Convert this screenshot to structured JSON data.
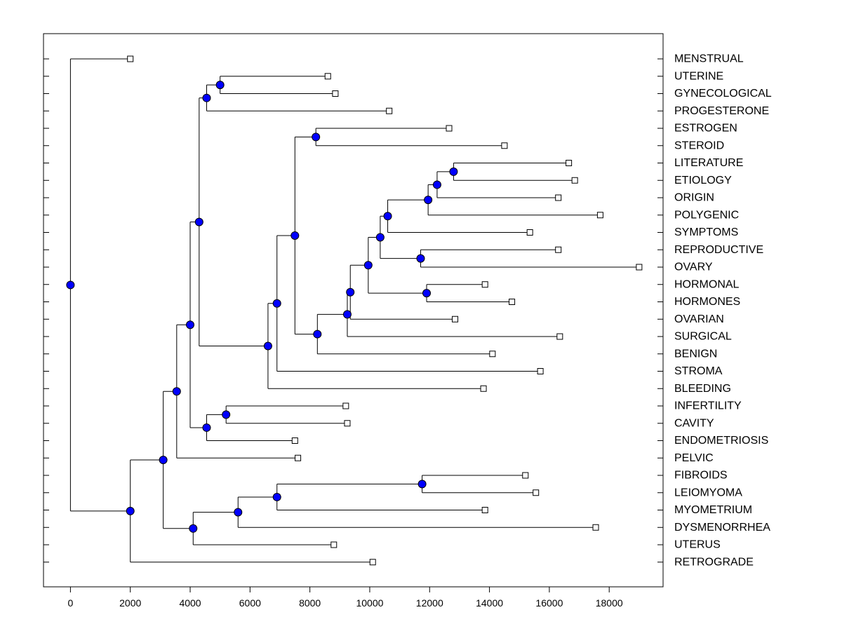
{
  "chart_data": {
    "type": "dendrogram",
    "title": "",
    "xlabel": "",
    "ylabel": "",
    "xlim": [
      -900,
      19800
    ],
    "x_ticks": [
      0,
      2000,
      4000,
      6000,
      8000,
      10000,
      12000,
      14000,
      16000,
      18000
    ],
    "x_tick_labels": [
      "0",
      "2000",
      "4000",
      "6000",
      "8000",
      "10000",
      "12000",
      "14000",
      "16000",
      "18000"
    ],
    "grid": false,
    "leaves": [
      {
        "label": "MENSTRUAL",
        "value": 2000
      },
      {
        "label": "UTERINE",
        "value": 8600
      },
      {
        "label": "GYNECOLOGICAL",
        "value": 8850
      },
      {
        "label": "PROGESTERONE",
        "value": 10650
      },
      {
        "label": "ESTROGEN",
        "value": 12650
      },
      {
        "label": "STEROID",
        "value": 14500
      },
      {
        "label": "LITERATURE",
        "value": 16650
      },
      {
        "label": "ETIOLOGY",
        "value": 16850
      },
      {
        "label": "ORIGIN",
        "value": 16300
      },
      {
        "label": "POLYGENIC",
        "value": 17700
      },
      {
        "label": "SYMPTOMS",
        "value": 15350
      },
      {
        "label": "REPRODUCTIVE",
        "value": 16300
      },
      {
        "label": "OVARY",
        "value": 19000
      },
      {
        "label": "HORMONAL",
        "value": 13850
      },
      {
        "label": "HORMONES",
        "value": 14750
      },
      {
        "label": "OVARIAN",
        "value": 12850
      },
      {
        "label": "SURGICAL",
        "value": 16350
      },
      {
        "label": "BENIGN",
        "value": 14100
      },
      {
        "label": "STROMA",
        "value": 15700
      },
      {
        "label": "BLEEDING",
        "value": 13800
      },
      {
        "label": "INFERTILITY",
        "value": 9200
      },
      {
        "label": "CAVITY",
        "value": 9250
      },
      {
        "label": "ENDOMETRIOSIS",
        "value": 7500
      },
      {
        "label": "PELVIC",
        "value": 7600
      },
      {
        "label": "FIBROIDS",
        "value": 15200
      },
      {
        "label": "LEIOMYOMA",
        "value": 15550
      },
      {
        "label": "MYOMETRIUM",
        "value": 13850
      },
      {
        "label": "DYSMENORRHEA",
        "value": 17550
      },
      {
        "label": "UTERUS",
        "value": 8800
      },
      {
        "label": "RETROGRADE",
        "value": 10100
      }
    ],
    "merges": [
      {
        "id": "m1",
        "value": 5000,
        "children": [
          "UTERINE",
          "GYNECOLOGICAL"
        ]
      },
      {
        "id": "m2",
        "value": 4550,
        "children": [
          "m1",
          "PROGESTERONE"
        ]
      },
      {
        "id": "m3",
        "value": 8200,
        "children": [
          "ESTROGEN",
          "STEROID"
        ]
      },
      {
        "id": "m4",
        "value": 12800,
        "children": [
          "LITERATURE",
          "ETIOLOGY"
        ]
      },
      {
        "id": "m5",
        "value": 12250,
        "children": [
          "m4",
          "ORIGIN"
        ]
      },
      {
        "id": "m6",
        "value": 11950,
        "children": [
          "m5",
          "POLYGENIC"
        ]
      },
      {
        "id": "m7",
        "value": 10600,
        "children": [
          "m6",
          "SYMPTOMS"
        ]
      },
      {
        "id": "m8",
        "value": 11700,
        "children": [
          "REPRODUCTIVE",
          "OVARY"
        ]
      },
      {
        "id": "m9",
        "value": 10350,
        "children": [
          "m7",
          "m8"
        ]
      },
      {
        "id": "m10",
        "value": 11900,
        "children": [
          "HORMONAL",
          "HORMONES"
        ]
      },
      {
        "id": "m11",
        "value": 9950,
        "children": [
          "m9",
          "m10"
        ]
      },
      {
        "id": "m12",
        "value": 9350,
        "children": [
          "m11",
          "OVARIAN"
        ]
      },
      {
        "id": "m13",
        "value": 9250,
        "children": [
          "m12",
          "SURGICAL"
        ]
      },
      {
        "id": "m14",
        "value": 8250,
        "children": [
          "m13",
          "BENIGN"
        ]
      },
      {
        "id": "m15",
        "value": 7500,
        "children": [
          "m3",
          "m14"
        ]
      },
      {
        "id": "m16",
        "value": 6900,
        "children": [
          "m15",
          "STROMA"
        ]
      },
      {
        "id": "m17",
        "value": 6600,
        "children": [
          "m16",
          "BLEEDING"
        ]
      },
      {
        "id": "m18",
        "value": 4300,
        "children": [
          "m2",
          "m17"
        ]
      },
      {
        "id": "m19",
        "value": 5200,
        "children": [
          "INFERTILITY",
          "CAVITY"
        ]
      },
      {
        "id": "m20",
        "value": 4550,
        "children": [
          "m19",
          "ENDOMETRIOSIS"
        ]
      },
      {
        "id": "m21",
        "value": 4000,
        "children": [
          "m18",
          "m20"
        ]
      },
      {
        "id": "m22",
        "value": 3550,
        "children": [
          "m21",
          "PELVIC"
        ]
      },
      {
        "id": "m23",
        "value": 11750,
        "children": [
          "FIBROIDS",
          "LEIOMYOMA"
        ]
      },
      {
        "id": "m24",
        "value": 6900,
        "children": [
          "m23",
          "MYOMETRIUM"
        ]
      },
      {
        "id": "m25",
        "value": 5600,
        "children": [
          "m24",
          "DYSMENORRHEA"
        ]
      },
      {
        "id": "m26",
        "value": 4100,
        "children": [
          "m25",
          "UTERUS"
        ]
      },
      {
        "id": "m27",
        "value": 3100,
        "children": [
          "m22",
          "m26"
        ]
      },
      {
        "id": "m28",
        "value": 2000,
        "children": [
          "m27",
          "RETROGRADE"
        ]
      },
      {
        "id": "m29",
        "value": 0,
        "children": [
          "MENSTRUAL",
          "m28"
        ]
      }
    ],
    "colors": {
      "node_fill": "#0000ff",
      "leaf_fill": "#ffffff",
      "line": "#000000",
      "background": "#ffffff"
    }
  }
}
